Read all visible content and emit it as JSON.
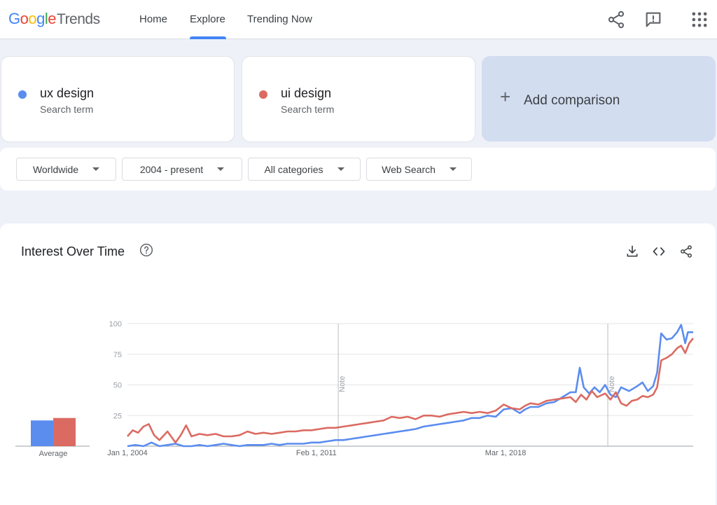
{
  "logo": {
    "google": "Google",
    "trends": "Trends"
  },
  "nav": [
    {
      "label": "Home"
    },
    {
      "label": "Explore",
      "active": true
    },
    {
      "label": "Trending Now"
    }
  ],
  "top_icons": [
    "share-icon",
    "feedback-icon",
    "apps-grid-icon"
  ],
  "terms": [
    {
      "name": "ux design",
      "sub": "Search term",
      "color": "#5b8def"
    },
    {
      "name": "ui design",
      "sub": "Search term",
      "color": "#db6b62"
    }
  ],
  "add_comparison": {
    "label": "Add comparison"
  },
  "filters": [
    {
      "label": "Worldwide"
    },
    {
      "label": "2004 - present"
    },
    {
      "label": "All categories"
    },
    {
      "label": "Web Search"
    }
  ],
  "chart_section": {
    "title": "Interest Over Time",
    "icons": [
      "help-icon",
      "download-icon",
      "embed-icon",
      "share-icon"
    ]
  },
  "chart_data": {
    "type": "line",
    "title": "",
    "xlabel": "",
    "ylabel": "",
    "ylim": [
      0,
      100
    ],
    "yticks": [
      25,
      50,
      75,
      100
    ],
    "xticks": [
      "Jan 1, 2004",
      "Feb 1, 2011",
      "Mar 1, 2018"
    ],
    "notes": [
      {
        "x": 2011.9,
        "label": "Note"
      },
      {
        "x": 2022.0,
        "label": "Note"
      }
    ],
    "x_start": 2004.0,
    "x_end": 2025.2,
    "average_label": "Average",
    "averages": [
      {
        "series": "ux design",
        "value": 21
      },
      {
        "series": "ui design",
        "value": 23
      }
    ],
    "series": [
      {
        "name": "ux design",
        "color": "#5b8def",
        "points": [
          [
            2004.0,
            0
          ],
          [
            2004.3,
            1
          ],
          [
            2004.6,
            0
          ],
          [
            2004.9,
            3
          ],
          [
            2005.2,
            0
          ],
          [
            2005.5,
            1
          ],
          [
            2005.8,
            2
          ],
          [
            2006.1,
            0
          ],
          [
            2006.4,
            0
          ],
          [
            2006.7,
            1
          ],
          [
            2007.0,
            0
          ],
          [
            2007.3,
            1
          ],
          [
            2007.6,
            2
          ],
          [
            2007.9,
            1
          ],
          [
            2008.2,
            0
          ],
          [
            2008.5,
            1
          ],
          [
            2008.8,
            1
          ],
          [
            2009.1,
            1
          ],
          [
            2009.4,
            2
          ],
          [
            2009.7,
            1
          ],
          [
            2010.0,
            2
          ],
          [
            2010.3,
            2
          ],
          [
            2010.6,
            2
          ],
          [
            2010.9,
            3
          ],
          [
            2011.2,
            3
          ],
          [
            2011.5,
            4
          ],
          [
            2011.8,
            5
          ],
          [
            2012.1,
            5
          ],
          [
            2012.4,
            6
          ],
          [
            2012.7,
            7
          ],
          [
            2013.0,
            8
          ],
          [
            2013.3,
            9
          ],
          [
            2013.6,
            10
          ],
          [
            2013.9,
            11
          ],
          [
            2014.2,
            12
          ],
          [
            2014.5,
            13
          ],
          [
            2014.8,
            14
          ],
          [
            2015.1,
            16
          ],
          [
            2015.4,
            17
          ],
          [
            2015.7,
            18
          ],
          [
            2016.0,
            19
          ],
          [
            2016.3,
            20
          ],
          [
            2016.6,
            21
          ],
          [
            2016.9,
            23
          ],
          [
            2017.2,
            23
          ],
          [
            2017.5,
            25
          ],
          [
            2017.8,
            24
          ],
          [
            2018.1,
            30
          ],
          [
            2018.4,
            31
          ],
          [
            2018.7,
            27
          ],
          [
            2018.9,
            30
          ],
          [
            2019.1,
            32
          ],
          [
            2019.4,
            32
          ],
          [
            2019.7,
            35
          ],
          [
            2020.0,
            36
          ],
          [
            2020.3,
            40
          ],
          [
            2020.6,
            44
          ],
          [
            2020.8,
            44
          ],
          [
            2020.95,
            64
          ],
          [
            2021.1,
            48
          ],
          [
            2021.3,
            43
          ],
          [
            2021.5,
            48
          ],
          [
            2021.7,
            44
          ],
          [
            2021.9,
            50
          ],
          [
            2022.1,
            42
          ],
          [
            2022.3,
            40
          ],
          [
            2022.5,
            48
          ],
          [
            2022.8,
            45
          ],
          [
            2023.1,
            49
          ],
          [
            2023.3,
            52
          ],
          [
            2023.5,
            45
          ],
          [
            2023.7,
            49
          ],
          [
            2023.85,
            60
          ],
          [
            2024.0,
            92
          ],
          [
            2024.2,
            87
          ],
          [
            2024.4,
            88
          ],
          [
            2024.6,
            93
          ],
          [
            2024.75,
            99
          ],
          [
            2024.9,
            84
          ],
          [
            2025.0,
            93
          ],
          [
            2025.2,
            93
          ]
        ]
      },
      {
        "name": "ui design",
        "color": "#db6b62",
        "points": [
          [
            2004.0,
            8
          ],
          [
            2004.2,
            13
          ],
          [
            2004.4,
            11
          ],
          [
            2004.6,
            16
          ],
          [
            2004.8,
            18
          ],
          [
            2005.0,
            9
          ],
          [
            2005.2,
            5
          ],
          [
            2005.5,
            12
          ],
          [
            2005.8,
            3
          ],
          [
            2006.0,
            9
          ],
          [
            2006.2,
            17
          ],
          [
            2006.4,
            8
          ],
          [
            2006.7,
            10
          ],
          [
            2007.0,
            9
          ],
          [
            2007.3,
            10
          ],
          [
            2007.6,
            8
          ],
          [
            2007.9,
            8
          ],
          [
            2008.2,
            9
          ],
          [
            2008.5,
            12
          ],
          [
            2008.8,
            10
          ],
          [
            2009.1,
            11
          ],
          [
            2009.4,
            10
          ],
          [
            2009.7,
            11
          ],
          [
            2010.0,
            12
          ],
          [
            2010.3,
            12
          ],
          [
            2010.6,
            13
          ],
          [
            2010.9,
            13
          ],
          [
            2011.2,
            14
          ],
          [
            2011.5,
            15
          ],
          [
            2011.8,
            15
          ],
          [
            2012.1,
            16
          ],
          [
            2012.4,
            17
          ],
          [
            2012.7,
            18
          ],
          [
            2013.0,
            19
          ],
          [
            2013.3,
            20
          ],
          [
            2013.6,
            21
          ],
          [
            2013.9,
            24
          ],
          [
            2014.2,
            23
          ],
          [
            2014.5,
            24
          ],
          [
            2014.8,
            22
          ],
          [
            2015.1,
            25
          ],
          [
            2015.4,
            25
          ],
          [
            2015.7,
            24
          ],
          [
            2016.0,
            26
          ],
          [
            2016.3,
            27
          ],
          [
            2016.6,
            28
          ],
          [
            2016.9,
            27
          ],
          [
            2017.2,
            28
          ],
          [
            2017.5,
            27
          ],
          [
            2017.8,
            29
          ],
          [
            2018.1,
            34
          ],
          [
            2018.4,
            31
          ],
          [
            2018.7,
            30
          ],
          [
            2018.9,
            33
          ],
          [
            2019.1,
            35
          ],
          [
            2019.4,
            34
          ],
          [
            2019.7,
            37
          ],
          [
            2020.0,
            38
          ],
          [
            2020.3,
            39
          ],
          [
            2020.6,
            40
          ],
          [
            2020.8,
            36
          ],
          [
            2021.0,
            42
          ],
          [
            2021.2,
            38
          ],
          [
            2021.4,
            45
          ],
          [
            2021.6,
            40
          ],
          [
            2021.9,
            43
          ],
          [
            2022.1,
            38
          ],
          [
            2022.3,
            44
          ],
          [
            2022.5,
            35
          ],
          [
            2022.7,
            33
          ],
          [
            2022.9,
            37
          ],
          [
            2023.1,
            38
          ],
          [
            2023.3,
            41
          ],
          [
            2023.5,
            40
          ],
          [
            2023.7,
            42
          ],
          [
            2023.85,
            48
          ],
          [
            2024.0,
            70
          ],
          [
            2024.2,
            72
          ],
          [
            2024.4,
            75
          ],
          [
            2024.6,
            80
          ],
          [
            2024.75,
            82
          ],
          [
            2024.9,
            76
          ],
          [
            2025.05,
            84
          ],
          [
            2025.2,
            88
          ]
        ]
      }
    ]
  }
}
